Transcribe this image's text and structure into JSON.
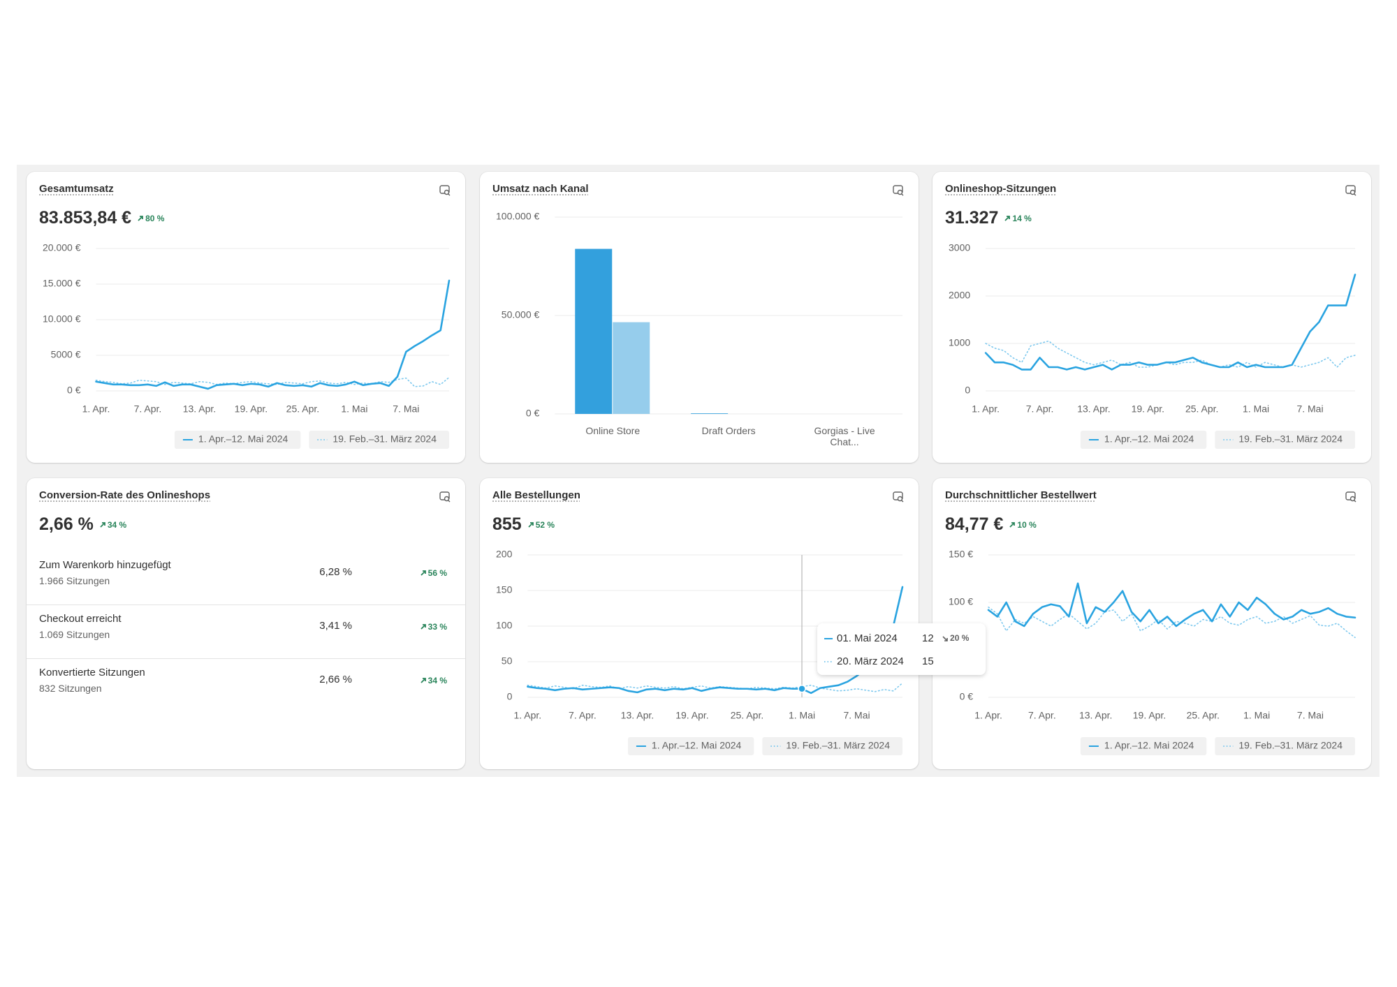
{
  "cards": [
    {
      "title": "Gesamtumsatz",
      "value": "83.853,84 €",
      "change": "80 %",
      "chart": {
        "type": "line",
        "grid": true,
        "categories": [
          "1. Apr.",
          null,
          null,
          null,
          null,
          null,
          "7. Apr.",
          null,
          null,
          null,
          null,
          null,
          "13. Apr.",
          null,
          null,
          null,
          null,
          null,
          "19. Apr.",
          null,
          null,
          null,
          null,
          null,
          "25. Apr.",
          null,
          null,
          null,
          null,
          null,
          "1. Mai",
          null,
          null,
          null,
          null,
          null,
          "7. Mai",
          null,
          null,
          null,
          null,
          null
        ],
        "ylim": [
          0,
          20000
        ],
        "yticks": [
          {
            "value": 0,
            "label": "0 €"
          },
          {
            "value": 5000,
            "label": "5000 €"
          },
          {
            "value": 10000,
            "label": "10.000 €"
          },
          {
            "value": 15000,
            "label": "15.000 €"
          },
          {
            "value": 20000,
            "label": "20.000 €"
          }
        ],
        "series": [
          {
            "name": "1. Apr.–12. Mai 2024",
            "color": "#29a3e0",
            "style": "solid",
            "values": [
              1300,
              1100,
              900,
              900,
              800,
              800,
              900,
              700,
              1200,
              700,
              900,
              900,
              600,
              300,
              800,
              900,
              1000,
              800,
              1000,
              900,
              600,
              1100,
              800,
              700,
              800,
              600,
              1100,
              800,
              700,
              900,
              1300,
              800,
              1000,
              1100,
              700,
              2000,
              5500,
              6300,
              7000,
              7800,
              8500,
              15500
            ]
          },
          {
            "name": "19. Feb.–31. März 2024",
            "color": "#7cc8ee",
            "style": "dotted",
            "values": [
              1500,
              1300,
              1200,
              1000,
              1100,
              1500,
              1400,
              1300,
              900,
              1200,
              1100,
              1000,
              1300,
              1200,
              900,
              1100,
              1000,
              1200,
              1300,
              1100,
              1000,
              900,
              1200,
              1100,
              1000,
              1300,
              1400,
              1100,
              1000,
              1200,
              900,
              1100,
              1000,
              1300,
              1200,
              1600,
              1800,
              600,
              700,
              1300,
              900,
              1900
            ]
          }
        ]
      }
    },
    {
      "title": "Umsatz nach Kanal",
      "chart": {
        "type": "bar",
        "grid": true,
        "categories": [
          "Online Store",
          "Draft Orders",
          "Gorgias - Live Chat..."
        ],
        "ylim": [
          0,
          100000
        ],
        "yticks": [
          {
            "value": 0,
            "label": "0 €"
          },
          {
            "value": 50000,
            "label": "50.000 €"
          },
          {
            "value": 100000,
            "label": "100.000 €"
          }
        ],
        "series": [
          {
            "color": "#33a0dd",
            "values": [
              83853.84,
              300,
              0
            ]
          },
          {
            "color": "#96cdec",
            "values": [
              46600,
              0,
              0
            ]
          }
        ]
      }
    },
    {
      "title": "Onlineshop-Sitzungen",
      "value": "31.327",
      "change": "14 %",
      "chart": {
        "type": "line",
        "grid": true,
        "categories": [
          "1. Apr.",
          null,
          null,
          null,
          null,
          null,
          "7. Apr.",
          null,
          null,
          null,
          null,
          null,
          "13. Apr.",
          null,
          null,
          null,
          null,
          null,
          "19. Apr.",
          null,
          null,
          null,
          null,
          null,
          "25. Apr.",
          null,
          null,
          null,
          null,
          null,
          "1. Mai",
          null,
          null,
          null,
          null,
          null,
          "7. Mai",
          null,
          null,
          null,
          null,
          null
        ],
        "ylim": [
          0,
          3000
        ],
        "yticks": [
          0,
          1000,
          2000,
          3000
        ],
        "series": [
          {
            "name": "1. Apr.–12. Mai 2024",
            "color": "#29a3e0",
            "style": "solid",
            "values": [
              800,
              600,
              600,
              550,
              450,
              450,
              700,
              500,
              500,
              450,
              500,
              450,
              500,
              550,
              450,
              550,
              550,
              600,
              550,
              550,
              600,
              600,
              650,
              700,
              600,
              550,
              500,
              500,
              600,
              500,
              550,
              500,
              500,
              500,
              550,
              900,
              1250,
              1450,
              1800,
              1800,
              1800,
              2450
            ]
          },
          {
            "name": "19. Feb.–31. März 2024",
            "color": "#7cc8ee",
            "style": "dotted",
            "values": [
              1000,
              900,
              850,
              700,
              600,
              950,
              1000,
              1050,
              900,
              800,
              700,
              600,
              550,
              600,
              650,
              550,
              600,
              500,
              500,
              550,
              600,
              550,
              600,
              600,
              650,
              550,
              500,
              550,
              500,
              600,
              500,
              600,
              550,
              500,
              550,
              500,
              550,
              600,
              700,
              500,
              700,
              750
            ]
          }
        ]
      }
    },
    {
      "title": "Conversion-Rate des Onlineshops",
      "value": "2,66 %",
      "change": "34 %",
      "rows": [
        {
          "label": "Zum Warenkorb hinzugefügt",
          "sub": "1.966 Sitzungen",
          "value": "6,28 %",
          "change": "56 %"
        },
        {
          "label": "Checkout erreicht",
          "sub": "1.069 Sitzungen",
          "value": "3,41 %",
          "change": "33 %"
        },
        {
          "label": "Konvertierte Sitzungen",
          "sub": "832 Sitzungen",
          "value": "2,66 %",
          "change": "34 %"
        }
      ]
    },
    {
      "title": "Alle Bestellungen",
      "value": "855",
      "change": "52 %",
      "chart": {
        "type": "line",
        "grid": true,
        "categories": [
          "1. Apr.",
          null,
          null,
          null,
          null,
          null,
          "7. Apr.",
          null,
          null,
          null,
          null,
          null,
          "13. Apr.",
          null,
          null,
          null,
          null,
          null,
          "19. Apr.",
          null,
          null,
          null,
          null,
          null,
          "25. Apr.",
          null,
          null,
          null,
          null,
          null,
          "1. Mai",
          null,
          null,
          null,
          null,
          null,
          "7. Mai",
          null,
          null,
          null,
          null,
          null
        ],
        "ylim": [
          0,
          200
        ],
        "yticks": [
          0,
          50,
          100,
          150,
          200
        ],
        "series": [
          {
            "name": "1. Apr.–12. Mai 2024",
            "color": "#29a3e0",
            "style": "solid",
            "values": [
              15,
              13,
              12,
              10,
              12,
              13,
              11,
              12,
              13,
              14,
              13,
              9,
              7,
              11,
              12,
              10,
              12,
              11,
              13,
              9,
              12,
              14,
              13,
              12,
              12,
              11,
              12,
              10,
              13,
              12,
              12,
              6,
              13,
              15,
              17,
              22,
              30,
              40,
              50,
              60,
              100,
              155
            ]
          },
          {
            "name": "19. Feb.–31. März 2024",
            "color": "#7cc8ee",
            "style": "dotted",
            "values": [
              17,
              15,
              13,
              16,
              14,
              12,
              17,
              15,
              14,
              16,
              12,
              15,
              13,
              16,
              14,
              13,
              15,
              12,
              14,
              16,
              13,
              15,
              14,
              13,
              12,
              14,
              13,
              12,
              14,
              13,
              15,
              17,
              13,
              11,
              9,
              10,
              12,
              10,
              8,
              11,
              9,
              20
            ]
          }
        ],
        "tooltip": {
          "date": "01. Mai 2024",
          "compare_date": "20. März 2024",
          "change": "20 %"
        }
      }
    },
    {
      "title": "Durchschnittlicher Bestellwert",
      "value": "84,77 €",
      "change": "10 %",
      "chart": {
        "type": "line",
        "grid": true,
        "categories": [
          "1. Apr.",
          null,
          null,
          null,
          null,
          null,
          "7. Apr.",
          null,
          null,
          null,
          null,
          null,
          "13. Apr.",
          null,
          null,
          null,
          null,
          null,
          "19. Apr.",
          null,
          null,
          null,
          null,
          null,
          "25. Apr.",
          null,
          null,
          null,
          null,
          null,
          "1. Mai",
          null,
          null,
          null,
          null,
          null,
          "7. Mai",
          null,
          null,
          null,
          null,
          null
        ],
        "ylim": [
          0,
          150
        ],
        "yticks": [
          {
            "value": 0,
            "label": "0 €"
          },
          {
            "value": 100,
            "label": "100 €"
          },
          {
            "value": 150,
            "label": "150 €"
          }
        ],
        "series": [
          {
            "name": "1. Apr.–12. Mai 2024",
            "color": "#29a3e0",
            "style": "solid",
            "values": [
              92,
              85,
              100,
              80,
              75,
              88,
              95,
              98,
              96,
              85,
              120,
              78,
              95,
              90,
              100,
              112,
              90,
              80,
              92,
              78,
              85,
              75,
              82,
              88,
              92,
              80,
              98,
              85,
              100,
              92,
              105,
              98,
              88,
              82,
              85,
              92,
              88,
              90,
              94,
              88,
              85,
              84
            ]
          },
          {
            "name": "19. Feb.–31. März 2024",
            "color": "#7cc8ee",
            "style": "dotted",
            "values": [
              95,
              88,
              70,
              82,
              78,
              85,
              80,
              75,
              82,
              88,
              80,
              72,
              78,
              90,
              92,
              80,
              88,
              70,
              75,
              82,
              72,
              80,
              78,
              75,
              82,
              80,
              85,
              78,
              76,
              82,
              85,
              78,
              80,
              85,
              78,
              82,
              86,
              76,
              75,
              78,
              70,
              63
            ]
          }
        ]
      }
    }
  ]
}
